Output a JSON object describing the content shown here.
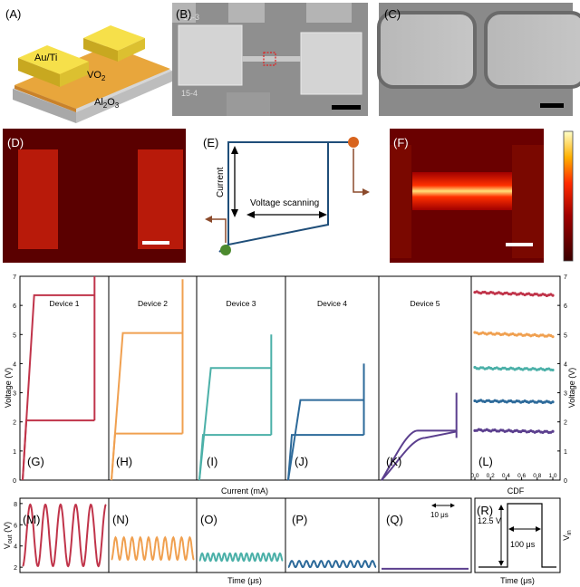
{
  "panel_letters": {
    "A": "(A)",
    "B": "(B)",
    "C": "(C)",
    "D": "(D)",
    "E": "(E)",
    "F": "(F)",
    "G": "(G)",
    "H": "(H)",
    "I": "(I)",
    "J": "(J)",
    "K": "(K)",
    "L": "(L)",
    "M": "(M)",
    "N": "(N)",
    "O": "(O)",
    "P": "(P)",
    "Q": "(Q)",
    "R": "(R)"
  },
  "schematic": {
    "electrode_label": "Au/Ti",
    "film_label_main": "VO",
    "film_label_sub": "2",
    "substrate_label_main": "Al",
    "substrate_label_sub1": "2",
    "substrate_label_mid": "O",
    "substrate_label_sub2": "3"
  },
  "sem": {
    "label_top": "15-3",
    "label_bottom": "15-4"
  },
  "iv_sketch": {
    "current_label": "Current",
    "voltage_label": "Voltage scanning"
  },
  "colors": {
    "device1": "#c0344a",
    "device2": "#f0a050",
    "device3": "#4bb0a8",
    "device4": "#2d6a9a",
    "device5": "#5b3f8e",
    "gold_top": "#f6e04a",
    "gold_side": "#c8a820",
    "vo2": "#e8a63c",
    "substrate": "#c9c9c9",
    "thermal_bg": "#5a0000",
    "schematic_line": "#1f4e79",
    "dot_orange": "#d8641e",
    "dot_green": "#4c8a2e",
    "arrow_brown": "#8b4a2b"
  },
  "chart_data": [
    {
      "type": "line",
      "panel": "G-K",
      "xlabel": "Current (mA)",
      "ylabel": "Voltage (V)",
      "ylim": [
        0,
        7
      ],
      "yticks": [
        "0",
        "1",
        "2",
        "3",
        "4",
        "5",
        "6",
        "7"
      ],
      "series": [
        {
          "name": "Device 1",
          "high_threshold": 6.35,
          "hold": 2.05,
          "vmax": 7.0
        },
        {
          "name": "Device 2",
          "high_threshold": 5.05,
          "hold": 1.6,
          "vmax": 6.9
        },
        {
          "name": "Device 3",
          "high_threshold": 3.85,
          "hold": 1.55,
          "vmax": 5.0
        },
        {
          "name": "Device 4",
          "high_threshold": 2.75,
          "hold": 1.55,
          "vmax": 4.0
        },
        {
          "name": "Device 5",
          "high_threshold": 1.7,
          "hold": 1.45,
          "vmax": 3.0
        }
      ]
    },
    {
      "type": "scatter",
      "panel": "L",
      "xlabel": "CDF",
      "ylabel": "Voltage (V)",
      "xlim": [
        0,
        1
      ],
      "ylim": [
        0,
        7
      ],
      "xticks": [
        "0.0",
        "0.2",
        "0.4",
        "0.6",
        "0.8",
        "1.0"
      ],
      "yticks": [
        "0",
        "1",
        "2",
        "3",
        "4",
        "5",
        "6",
        "7"
      ],
      "series": [
        {
          "name": "Device 1",
          "start": 6.45,
          "end": 6.35
        },
        {
          "name": "Device 2",
          "start": 5.05,
          "end": 4.95
        },
        {
          "name": "Device 3",
          "start": 3.85,
          "end": 3.8
        },
        {
          "name": "Device 4",
          "start": 2.72,
          "end": 2.68
        },
        {
          "name": "Device 5",
          "start": 1.72,
          "end": 1.65
        }
      ]
    },
    {
      "type": "line",
      "panel": "M-Q",
      "xlabel": "Time (μs)",
      "ylabel_main": "V",
      "ylabel_sub": "out",
      "ylabel_unit": " (V)",
      "ylim": [
        1.5,
        8.5
      ],
      "yticks": [
        "2",
        "4",
        "6",
        "8"
      ],
      "scale_bar": "10 μs",
      "series": [
        {
          "name": "Device 1",
          "min": 2.1,
          "max": 7.9,
          "cycles": 5.5
        },
        {
          "name": "Device 2",
          "min": 2.7,
          "max": 4.8,
          "cycles": 10
        },
        {
          "name": "Device 3",
          "min": 2.6,
          "max": 3.3,
          "cycles": 15
        },
        {
          "name": "Device 4",
          "min": 2.0,
          "max": 2.6,
          "cycles": 12
        },
        {
          "name": "Device 5",
          "min": 1.8,
          "max": 1.9,
          "cycles": 0
        }
      ]
    },
    {
      "type": "line",
      "panel": "R",
      "xlabel": "Time (μs)",
      "ylabel_main": "V",
      "ylabel_sub": "in",
      "amplitude": "12.5 V",
      "pulse_width": "100 μs"
    }
  ]
}
